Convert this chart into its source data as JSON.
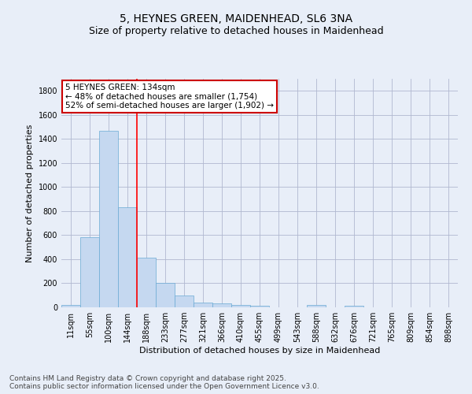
{
  "title_line1": "5, HEYNES GREEN, MAIDENHEAD, SL6 3NA",
  "title_line2": "Size of property relative to detached houses in Maidenhead",
  "xlabel": "Distribution of detached houses by size in Maidenhead",
  "ylabel": "Number of detached properties",
  "categories": [
    "11sqm",
    "55sqm",
    "100sqm",
    "144sqm",
    "188sqm",
    "233sqm",
    "277sqm",
    "321sqm",
    "366sqm",
    "410sqm",
    "455sqm",
    "499sqm",
    "543sqm",
    "588sqm",
    "632sqm",
    "676sqm",
    "721sqm",
    "765sqm",
    "809sqm",
    "854sqm",
    "898sqm"
  ],
  "values": [
    20,
    585,
    1470,
    830,
    415,
    200,
    100,
    38,
    30,
    20,
    10,
    0,
    0,
    20,
    0,
    10,
    0,
    0,
    0,
    0,
    0
  ],
  "bar_color": "#c5d8f0",
  "bar_edgecolor": "#6aaad4",
  "background_color": "#e8eef8",
  "grid_color": "#b0b8d0",
  "vline_x_index": 3.5,
  "vline_color": "red",
  "ylim": [
    0,
    1900
  ],
  "yticks": [
    0,
    200,
    400,
    600,
    800,
    1000,
    1200,
    1400,
    1600,
    1800
  ],
  "annotation_text": "5 HEYNES GREEN: 134sqm\n← 48% of detached houses are smaller (1,754)\n52% of semi-detached houses are larger (1,902) →",
  "annotation_box_facecolor": "#ffffff",
  "annotation_box_edgecolor": "#cc0000",
  "footer_line1": "Contains HM Land Registry data © Crown copyright and database right 2025.",
  "footer_line2": "Contains public sector information licensed under the Open Government Licence v3.0.",
  "title_fontsize": 10,
  "subtitle_fontsize": 9,
  "axis_label_fontsize": 8,
  "tick_fontsize": 7,
  "annotation_fontsize": 7.5,
  "footer_fontsize": 6.5
}
